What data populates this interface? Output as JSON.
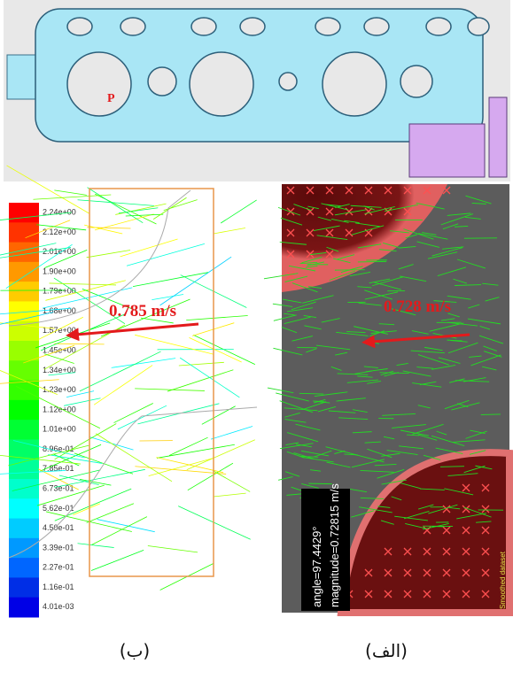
{
  "top_figure": {
    "point_label": "P"
  },
  "left_panel": {
    "colorbar_labels": [
      "2.24e+00",
      "2.12e+00",
      "2.01e+00",
      "1.90e+00",
      "1.79e+00",
      "1.68e+00",
      "1.57e+00",
      "1.45e+00",
      "1.34e+00",
      "1.23e+00",
      "1.12e+00",
      "1.01e+00",
      "8.96e-01",
      "7.85e-01",
      "6.73e-01",
      "5.62e-01",
      "4.50e-01",
      "3.39e-01",
      "2.27e-01",
      "1.16e-01",
      "4.01e-03"
    ],
    "annotation": "0.785 m/s",
    "caption": "(ب)"
  },
  "right_panel": {
    "annotation": "0.728 m/s",
    "angle_text": "angle=97.4429°",
    "magnitude_text": "magnitude=0.72815 m/s",
    "smoothed_label": "Smoothed dataset",
    "caption": "(الف)"
  }
}
